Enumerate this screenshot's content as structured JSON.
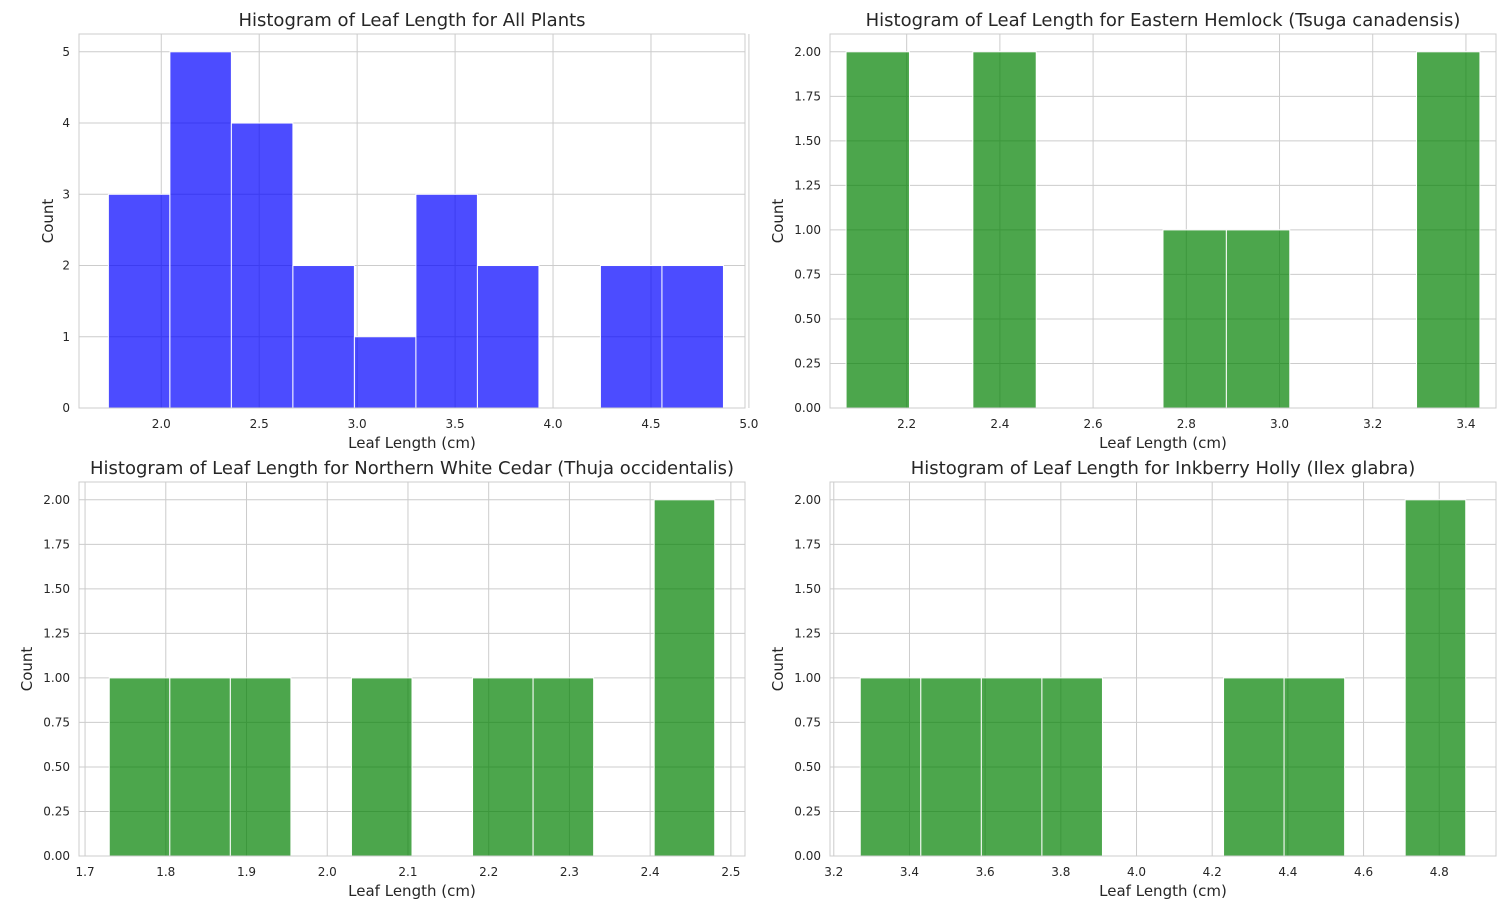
{
  "colors": {
    "background": "#ffffff",
    "axes_face": "#ffffff",
    "grid": "#cccccc",
    "spine": "#cccccc",
    "text": "#262626",
    "all_plants_bar": "#0000ff",
    "species_bar": "#008000",
    "bar_edge": "#ffffff"
  },
  "chart_data": [
    {
      "type": "bar",
      "style": "histogram",
      "title": "Histogram of Leaf Length for All Plants",
      "xlabel": "Leaf Length (cm)",
      "ylabel": "Count",
      "xlim": [
        1.58,
        4.98
      ],
      "ylim": [
        0,
        5.25
      ],
      "xticks": [
        "2.0",
        "2.5",
        "3.0",
        "3.5",
        "4.0",
        "4.5",
        "5.0"
      ],
      "yticks": [
        "0",
        "1",
        "2",
        "3",
        "4",
        "5"
      ],
      "bin_edges": [
        1.73,
        2.044,
        2.358,
        2.672,
        2.986,
        3.3,
        3.614,
        3.928,
        4.242,
        4.556,
        4.87
      ],
      "values": [
        3,
        5,
        4,
        2,
        1,
        3,
        2,
        0,
        2,
        2
      ],
      "color": "#0000ff",
      "grid": true
    },
    {
      "type": "bar",
      "style": "histogram",
      "title": "Histogram of Leaf Length for Eastern Hemlock (Tsuga canadensis)",
      "xlabel": "Leaf Length (cm)",
      "ylabel": "Count",
      "xlim": [
        2.0355,
        3.4645
      ],
      "ylim": [
        0,
        2.1
      ],
      "xticks": [
        "2.2",
        "2.4",
        "2.6",
        "2.8",
        "3.0",
        "3.2",
        "3.4"
      ],
      "yticks": [
        "0.00",
        "0.25",
        "0.50",
        "0.75",
        "1.00",
        "1.25",
        "1.50",
        "1.75",
        "2.00"
      ],
      "bin_edges": [
        2.07,
        2.206,
        2.342,
        2.478,
        2.614,
        2.75,
        2.886,
        3.022,
        3.158,
        3.294,
        3.43
      ],
      "values": [
        2,
        0,
        2,
        0,
        0,
        1,
        1,
        0,
        0,
        2
      ],
      "color": "#008000",
      "grid": true
    },
    {
      "type": "bar",
      "style": "histogram",
      "title": "Histogram of Leaf Length for Northern White Cedar (Thuja occidentalis)",
      "xlabel": "Leaf Length (cm)",
      "ylabel": "Count",
      "xlim": [
        1.6925,
        2.5175
      ],
      "ylim": [
        0,
        2.1
      ],
      "xticks": [
        "1.7",
        "1.8",
        "1.9",
        "2.0",
        "2.1",
        "2.2",
        "2.3",
        "2.4",
        "2.5"
      ],
      "yticks": [
        "0.00",
        "0.25",
        "0.50",
        "0.75",
        "1.00",
        "1.25",
        "1.50",
        "1.75",
        "2.00"
      ],
      "bin_edges": [
        1.73,
        1.805,
        1.88,
        1.955,
        2.03,
        2.105,
        2.18,
        2.255,
        2.33,
        2.405,
        2.48
      ],
      "values": [
        1,
        1,
        1,
        0,
        1,
        0,
        1,
        1,
        0,
        2
      ],
      "color": "#008000",
      "grid": true
    },
    {
      "type": "bar",
      "style": "histogram",
      "title": "Histogram of Leaf Length for Inkberry Holly (Ilex glabra)",
      "xlabel": "Leaf Length (cm)",
      "ylabel": "Count",
      "xlim": [
        3.19,
        4.95
      ],
      "ylim": [
        0,
        2.1
      ],
      "xticks": [
        "3.2",
        "3.4",
        "3.6",
        "3.8",
        "4.0",
        "4.2",
        "4.4",
        "4.6",
        "4.8"
      ],
      "yticks": [
        "0.00",
        "0.25",
        "0.50",
        "0.75",
        "1.00",
        "1.25",
        "1.50",
        "1.75",
        "2.00"
      ],
      "bin_edges": [
        3.27,
        3.43,
        3.59,
        3.75,
        3.91,
        4.07,
        4.23,
        4.39,
        4.55,
        4.71,
        4.87
      ],
      "values": [
        1,
        1,
        1,
        1,
        0,
        0,
        1,
        1,
        0,
        2
      ],
      "color": "#008000",
      "grid": true
    }
  ]
}
